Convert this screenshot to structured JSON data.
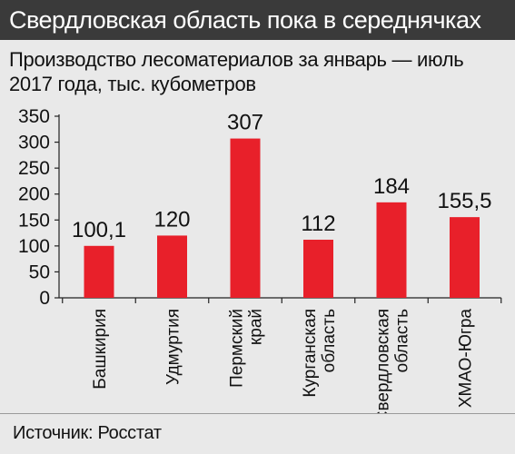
{
  "header": {
    "title": "Свердловская область пока в середнячках",
    "subtitle": "Производство лесоматериалов за январь — июль 2017 года, тыс. кубометров"
  },
  "footer": {
    "source": "Источник: Росстат"
  },
  "colors": {
    "bar": "#e8202a",
    "header_bg": "#3a3a3a",
    "background": "#e9e9e9"
  },
  "chart_data": {
    "type": "bar",
    "title": "Свердловская область пока в середнячках",
    "subtitle": "Производство лесоматериалов за январь — июль 2017 года, тыс. кубометров",
    "xlabel": "",
    "ylabel": "",
    "ylim": [
      0,
      350
    ],
    "yticks": [
      "0",
      "50",
      "100",
      "150",
      "200",
      "250",
      "300",
      "350"
    ],
    "grid": false,
    "categories": [
      [
        "Башкирия"
      ],
      [
        "Удмуртия"
      ],
      [
        "Пермский",
        "край"
      ],
      [
        "Курганская",
        "область"
      ],
      [
        "Свердловская",
        "область"
      ],
      [
        "ХМАО-Югра"
      ]
    ],
    "values": [
      100.1,
      120,
      307,
      112,
      184,
      155.5
    ],
    "value_labels": [
      "100,1",
      "120",
      "307",
      "112",
      "184",
      "155,5"
    ]
  }
}
